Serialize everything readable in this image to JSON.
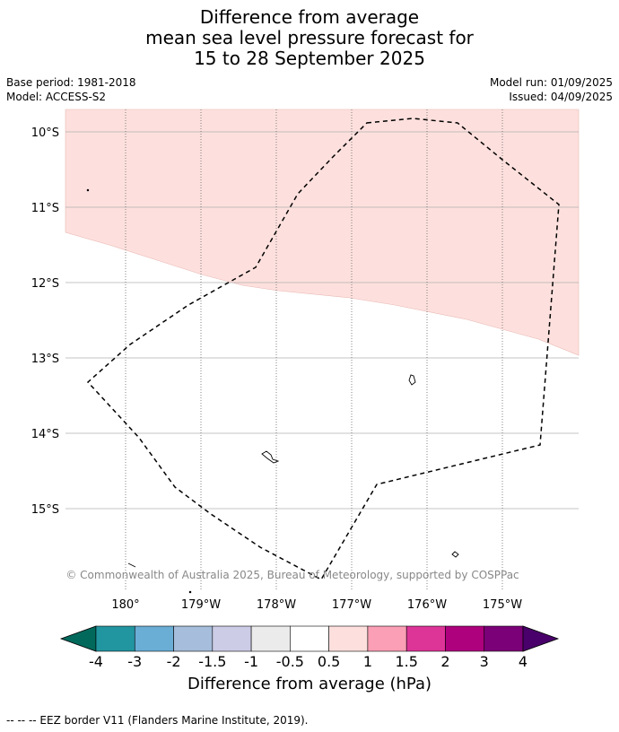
{
  "title_lines": [
    "Difference from average",
    "mean sea level pressure forecast for",
    "15 to 28 September 2025"
  ],
  "meta": {
    "base_period": "Base period: 1981-2018",
    "model": "Model: ACCESS-S2",
    "model_run": "Model run: 01/09/2025",
    "issued": "Issued: 04/09/2025"
  },
  "map": {
    "lat_labels": [
      "10°S",
      "11°S",
      "12°S",
      "13°S",
      "14°S",
      "15°S"
    ],
    "lon_labels": [
      "180°",
      "179°W",
      "178°W",
      "177°W",
      "176°W",
      "175°W"
    ],
    "lat_values": [
      -10,
      -11,
      -12,
      -13,
      -14,
      -15
    ],
    "lon_values": [
      180,
      -179,
      -178,
      -177,
      -176,
      -175
    ],
    "anomaly_fill_color": "#fde0dd",
    "anomaly_fill_category": "0.5 to 1",
    "copyright": "© Commonwealth of Australia 2025, Bureau of Meteorology, supported by COSPPac"
  },
  "colorbar": {
    "tick_labels": [
      "-4",
      "-3",
      "-2",
      "-1.5",
      "-1",
      "-0.5",
      "0.5",
      "1",
      "1.5",
      "2",
      "3",
      "4"
    ],
    "colors": [
      "#00695c",
      "#2196a0",
      "#6aaed6",
      "#a6bddb",
      "#cccce6",
      "#ebebeb",
      "#ffffff",
      "#fde0dd",
      "#fa9fb5",
      "#dd3497",
      "#ae017e",
      "#7a0177",
      "#49006a"
    ],
    "label": "Difference from average (hPa)"
  },
  "footer": "--  --  -- EEZ border V11 (Flanders Marine Institute, 2019)."
}
